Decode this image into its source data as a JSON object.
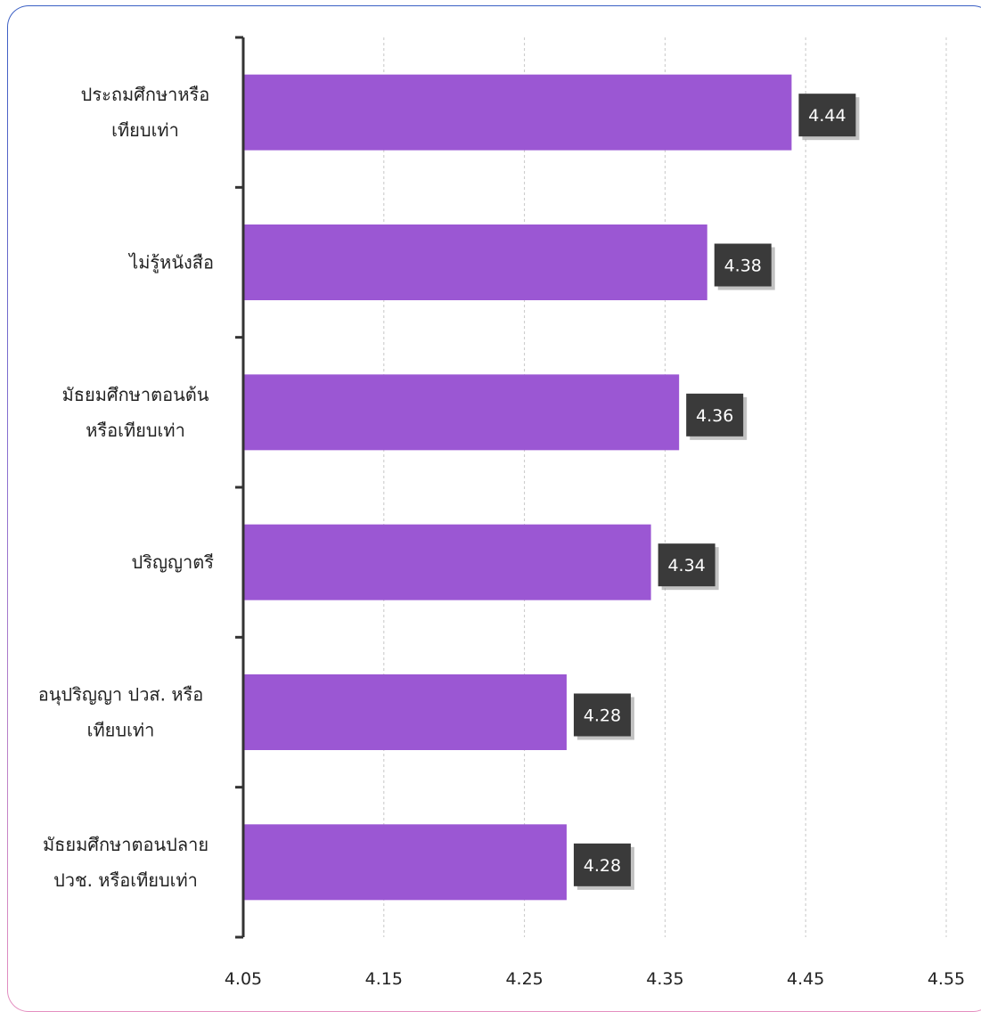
{
  "chart_data": {
    "type": "bar",
    "orientation": "horizontal",
    "categories": [
      [
        "ประถมศึกษาหรือ",
        "เทียบเท่า"
      ],
      [
        "ไม่รู้หนังสือ"
      ],
      [
        "มัธยมศึกษาตอนต้น",
        "หรือเทียบเท่า"
      ],
      [
        "ปริญญาตรี"
      ],
      [
        "อนุปริญญา ปวส. หรือ",
        "เทียบเท่า"
      ],
      [
        "มัธยมศึกษาตอนปลาย",
        "ปวช. หรือเทียบเท่า"
      ]
    ],
    "values": [
      4.44,
      4.38,
      4.36,
      4.34,
      4.28,
      4.28
    ],
    "data_labels": [
      "4.44",
      "4.38",
      "4.36",
      "4.34",
      "4.28",
      "4.28"
    ],
    "xlim": [
      4.05,
      4.55
    ],
    "xticks": [
      4.05,
      4.15,
      4.25,
      4.35,
      4.45,
      4.55
    ],
    "xtick_labels": [
      "4.05",
      "4.15",
      "4.25",
      "4.35",
      "4.45",
      "4.55"
    ],
    "grid": true,
    "colors": {
      "bar": "#9b57d3",
      "label_bg": "#3a3a3a",
      "axis": "#333333",
      "grid": "#c8c8c8"
    }
  }
}
